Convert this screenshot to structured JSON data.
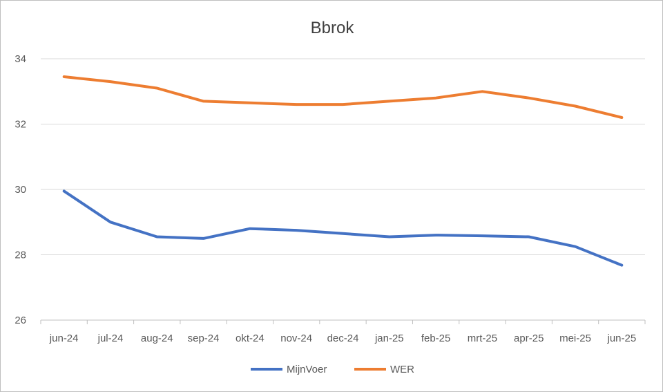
{
  "chart_data": {
    "type": "line",
    "title": "Bbrok",
    "categories": [
      "jun-24",
      "jul-24",
      "aug-24",
      "sep-24",
      "okt-24",
      "nov-24",
      "dec-24",
      "jan-25",
      "feb-25",
      "mrt-25",
      "apr-25",
      "mei-25",
      "jun-25"
    ],
    "series": [
      {
        "name": "MijnVoer",
        "color": "#4472c4",
        "values": [
          29.95,
          29.0,
          28.55,
          28.5,
          28.8,
          28.75,
          28.65,
          28.55,
          28.6,
          28.58,
          28.55,
          28.25,
          27.68
        ]
      },
      {
        "name": "WER",
        "color": "#ed7d31",
        "values": [
          33.45,
          33.3,
          33.1,
          32.7,
          32.65,
          32.6,
          32.6,
          32.7,
          32.8,
          33.0,
          32.8,
          32.55,
          32.2
        ]
      }
    ],
    "ylim": [
      26,
      34
    ],
    "yticks": [
      26,
      28,
      30,
      32,
      34
    ],
    "xlabel": "",
    "ylabel": "",
    "grid": true,
    "legend": "bottom"
  }
}
